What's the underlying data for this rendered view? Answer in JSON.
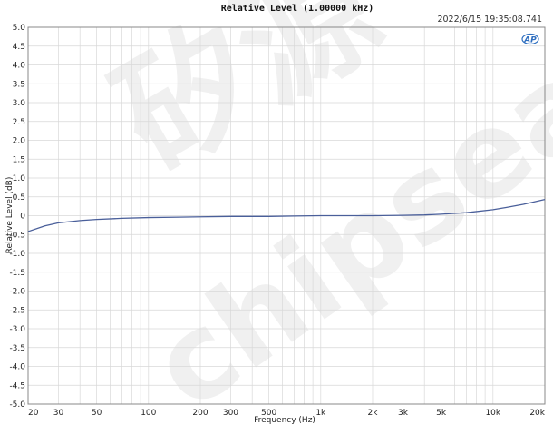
{
  "chart_data": {
    "type": "line",
    "title": "Relative Level (1.00000 kHz)",
    "timestamp": "2022/6/15 19:35:08.741",
    "logo": "AP",
    "xlabel": "Frequency (Hz)",
    "ylabel": "Relative Level (dB)",
    "xscale": "log",
    "xlim": [
      20,
      20000
    ],
    "ylim": [
      -5.0,
      5.0
    ],
    "grid": true,
    "x_ticks": [
      20,
      30,
      50,
      100,
      200,
      300,
      500,
      1000,
      2000,
      3000,
      5000,
      10000,
      20000
    ],
    "x_tick_labels": [
      "20",
      "30",
      "50",
      "100",
      "200",
      "300",
      "500",
      "1k",
      "2k",
      "3k",
      "5k",
      "10k",
      "20k"
    ],
    "y_ticks": [
      5.0,
      4.5,
      4.0,
      3.5,
      3.0,
      2.5,
      2.0,
      1.5,
      1.0,
      0.5,
      0,
      -0.5,
      -1.0,
      -1.5,
      -2.0,
      -2.5,
      -3.0,
      -3.5,
      -4.0,
      -4.5,
      -5.0
    ],
    "y_tick_labels": [
      "5.0",
      "4.5",
      "4.0",
      "3.5",
      "3.0",
      "2.5",
      "2.0",
      "1.5",
      "1.0",
      "0.5",
      "0",
      "-0.5",
      "-1.0",
      "-1.5",
      "-2.0",
      "-2.5",
      "-3.0",
      "-3.5",
      "-4.0",
      "-4.5",
      "-5.0"
    ],
    "colors": {
      "line": "#4a5f9a",
      "grid": "#d8d8d8",
      "frame": "#888888"
    },
    "series": [
      {
        "x": [
          20,
          25,
          30,
          40,
          50,
          70,
          100,
          150,
          200,
          300,
          500,
          700,
          1000,
          1500,
          2000,
          3000,
          4000,
          5000,
          7000,
          10000,
          12000,
          15000,
          20000
        ],
        "y": [
          -0.42,
          -0.27,
          -0.19,
          -0.13,
          -0.1,
          -0.07,
          -0.05,
          -0.04,
          -0.03,
          -0.02,
          -0.02,
          -0.01,
          0.0,
          0.0,
          0.0,
          0.01,
          0.02,
          0.04,
          0.08,
          0.16,
          0.22,
          0.3,
          0.43
        ]
      }
    ]
  },
  "watermark": "矽源 chipsea"
}
